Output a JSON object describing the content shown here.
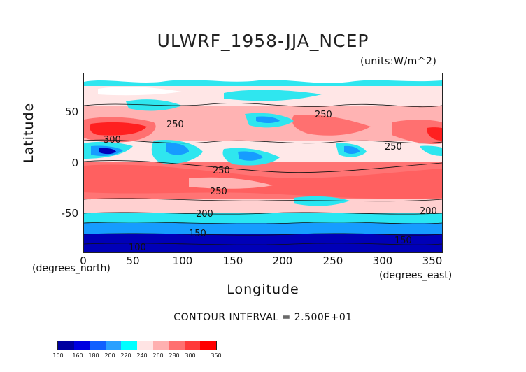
{
  "title": "ULWRF_1958-JJA_NCEP",
  "units": "(units:W/m^2)",
  "axis": {
    "ylabel": "Latitude",
    "xlabel": "Longitude",
    "y_unit": "(degrees_north)",
    "x_unit": "(degrees_east)",
    "yticks": [
      "50",
      "0",
      "-50"
    ],
    "xticks": [
      "0",
      "50",
      "100",
      "150",
      "200",
      "250",
      "300",
      "350"
    ]
  },
  "contour_interval": "CONTOUR INTERVAL = 2.500E+01",
  "contour_labels": [
    "250",
    "300",
    "250",
    "250",
    "250",
    "250",
    "200",
    "200",
    "150",
    "150",
    "100"
  ],
  "colorbar": {
    "labels": [
      "100",
      "160",
      "180",
      "200",
      "220",
      "240",
      "260",
      "280",
      "300",
      "350"
    ],
    "colors": [
      "#0000a0",
      "#0000e0",
      "#1060ff",
      "#2aa0ff",
      "#00ffff",
      "#ffe4e4",
      "#ffb0b0",
      "#ff7070",
      "#ff3a3a",
      "#ff0000"
    ]
  }
}
